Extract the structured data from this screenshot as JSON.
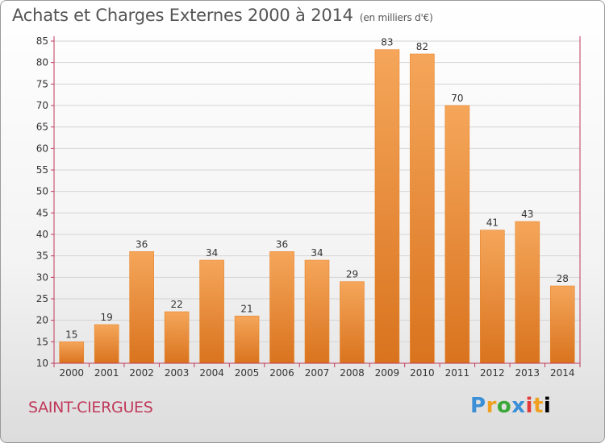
{
  "header": {
    "title": "Achats et Charges Externes 2000 à 2014",
    "unit": "(en milliers d'€)"
  },
  "location": "SAINT-CIERGUES",
  "logo": {
    "letters": [
      "P",
      "r",
      "o",
      "x",
      "i",
      "t",
      "i"
    ]
  },
  "chart_data": {
    "type": "bar",
    "title": "Achats et Charges Externes 2000 à 2014",
    "xlabel": "",
    "ylabel": "",
    "categories": [
      "2000",
      "2001",
      "2002",
      "2003",
      "2004",
      "2005",
      "2006",
      "2007",
      "2008",
      "2009",
      "2010",
      "2011",
      "2012",
      "2013",
      "2014"
    ],
    "values": [
      15,
      19,
      36,
      22,
      34,
      21,
      36,
      34,
      29,
      83,
      82,
      70,
      41,
      43,
      28
    ],
    "ylim": [
      10,
      85
    ],
    "yticks": [
      10,
      15,
      20,
      25,
      30,
      35,
      40,
      45,
      50,
      55,
      60,
      65,
      70,
      75,
      80,
      85
    ],
    "bar_color_top": "#f5a65a",
    "bar_color_bottom": "#d9731e",
    "axis_color": "#c0395a",
    "grid": true,
    "legend": "none"
  }
}
